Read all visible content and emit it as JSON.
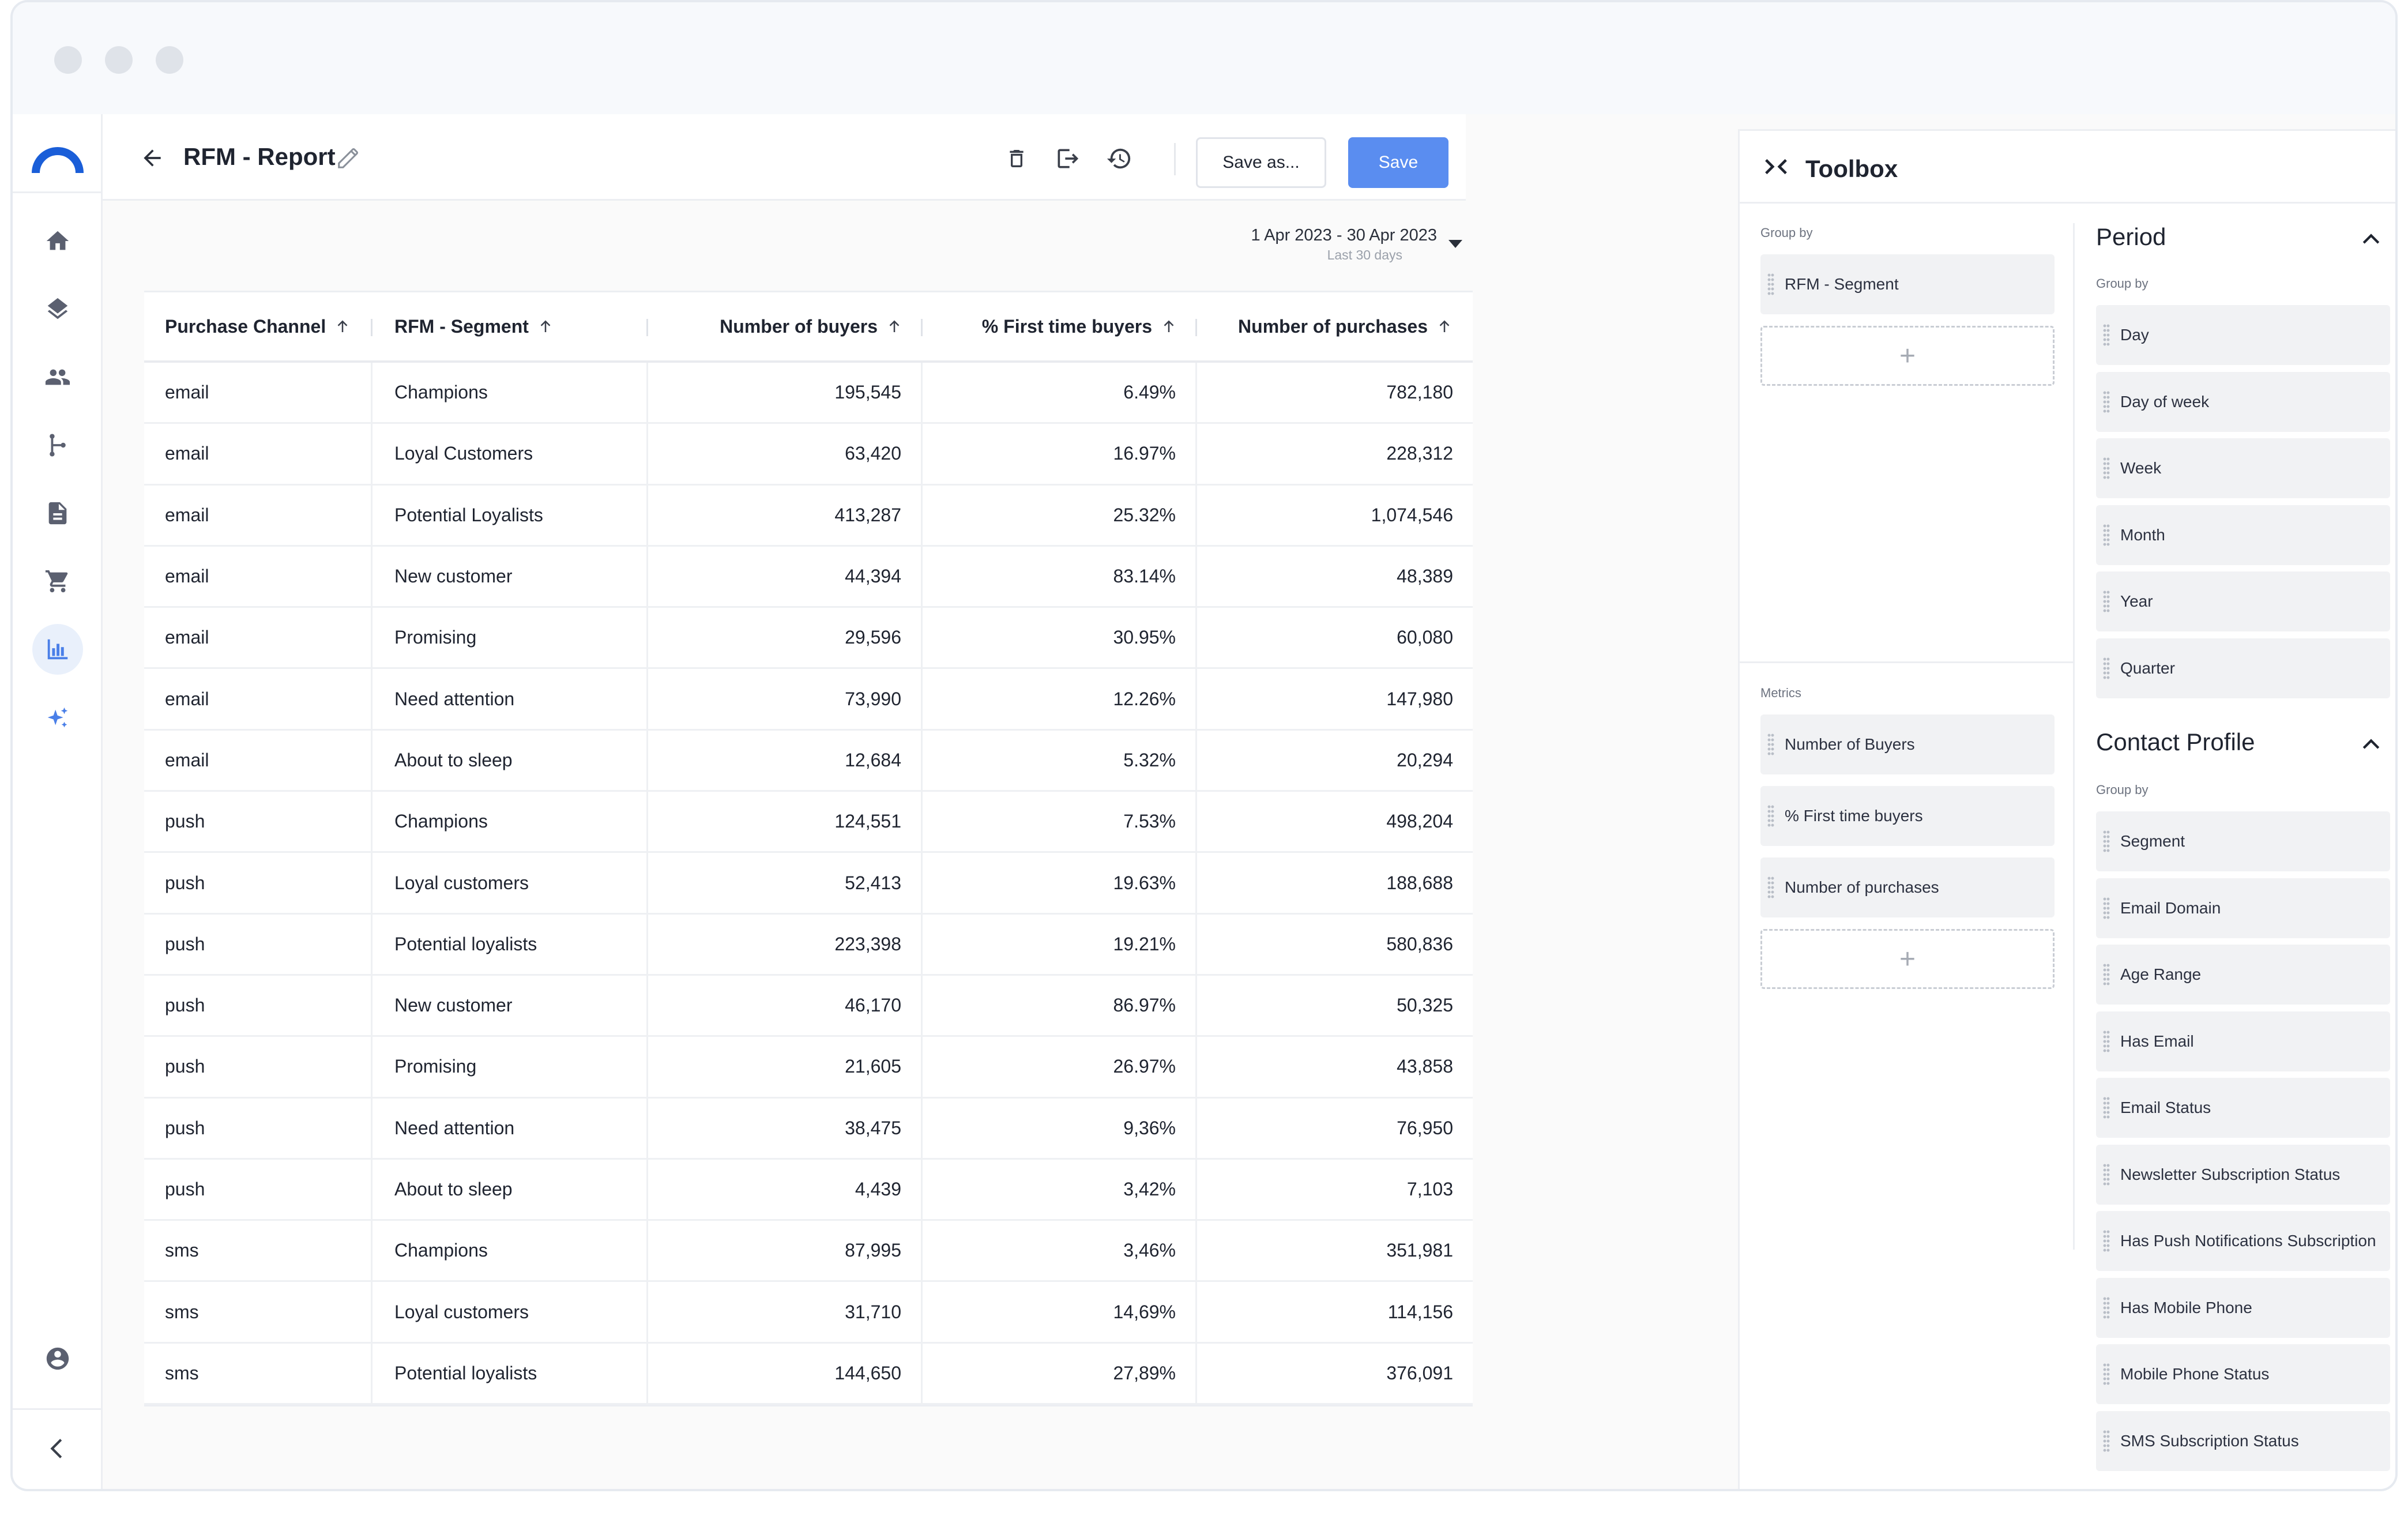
{
  "header": {
    "title": "RFM - Report",
    "save_as_label": "Save as...",
    "save_label": "Save"
  },
  "nav": {
    "items": [
      "home-icon",
      "layers-icon",
      "people-icon",
      "flow-icon",
      "document-icon",
      "cart-icon",
      "analytics-icon",
      "sparkle-icon"
    ],
    "active": "analytics-icon",
    "bottom": [
      "account-icon",
      "collapse-icon"
    ]
  },
  "date_range": {
    "label": "1 Apr 2023 - 30 Apr 2023",
    "sub": "Last 30 days"
  },
  "table": {
    "columns": [
      "Purchase Channel",
      "RFM - Segment",
      "Number of buyers",
      "% First time buyers",
      "Number of purchases"
    ],
    "rows": [
      [
        "email",
        "Champions",
        "195,545",
        "6.49%",
        "782,180"
      ],
      [
        "email",
        "Loyal Customers",
        "63,420",
        "16.97%",
        "228,312"
      ],
      [
        "email",
        "Potential Loyalists",
        "413,287",
        "25.32%",
        "1,074,546"
      ],
      [
        "email",
        "New customer",
        "44,394",
        "83.14%",
        "48,389"
      ],
      [
        "email",
        "Promising",
        "29,596",
        "30.95%",
        "60,080"
      ],
      [
        "email",
        "Need attention",
        "73,990",
        "12.26%",
        "147,980"
      ],
      [
        "email",
        "About to sleep",
        "12,684",
        "5.32%",
        "20,294"
      ],
      [
        "push",
        "Champions",
        "124,551",
        "7.53%",
        "498,204"
      ],
      [
        "push",
        "Loyal customers",
        "52,413",
        "19.63%",
        "188,688"
      ],
      [
        "push",
        "Potential loyalists",
        "223,398",
        "19.21%",
        "580,836"
      ],
      [
        "push",
        "New customer",
        "46,170",
        "86.97%",
        "50,325"
      ],
      [
        "push",
        "Promising",
        "21,605",
        "26.97%",
        "43,858"
      ],
      [
        "push",
        "Need attention",
        "38,475",
        "9,36%",
        "76,950"
      ],
      [
        "push",
        "About to sleep",
        "4,439",
        "3,42%",
        "7,103"
      ],
      [
        "sms",
        "Champions",
        "87,995",
        "3,46%",
        "351,981"
      ],
      [
        "sms",
        "Loyal customers",
        "31,710",
        "14,69%",
        "114,156"
      ],
      [
        "sms",
        "Potential loyalists",
        "144,650",
        "27,89%",
        "376,091"
      ]
    ]
  },
  "toolbox": {
    "title": "Toolbox",
    "group_by_label": "Group by",
    "group_by_items": [
      "RFM - Segment"
    ],
    "metrics_label": "Metrics",
    "metrics_items": [
      "Number of Buyers",
      "% First time buyers",
      "Number of purchases"
    ],
    "dropzone_symbol": "+",
    "period": {
      "title": "Period",
      "group_by_label": "Group by",
      "items": [
        "Day",
        "Day of week",
        "Week",
        "Month",
        "Year",
        "Quarter"
      ]
    },
    "contact_profile": {
      "title": "Contact Profile",
      "group_by_label": "Group by",
      "items": [
        "Segment",
        "Email Domain",
        "Age Range",
        "Has Email",
        "Email Status",
        "Newsletter Subscription Status",
        "Has Push Notifications Subscription",
        "Has Mobile Phone",
        "Mobile Phone Status",
        "SMS Subscription Status"
      ]
    }
  },
  "colors": {
    "primary": "#5a8df0",
    "logo": "#1a5ed8",
    "active_nav_bg": "#e9f0fb"
  }
}
